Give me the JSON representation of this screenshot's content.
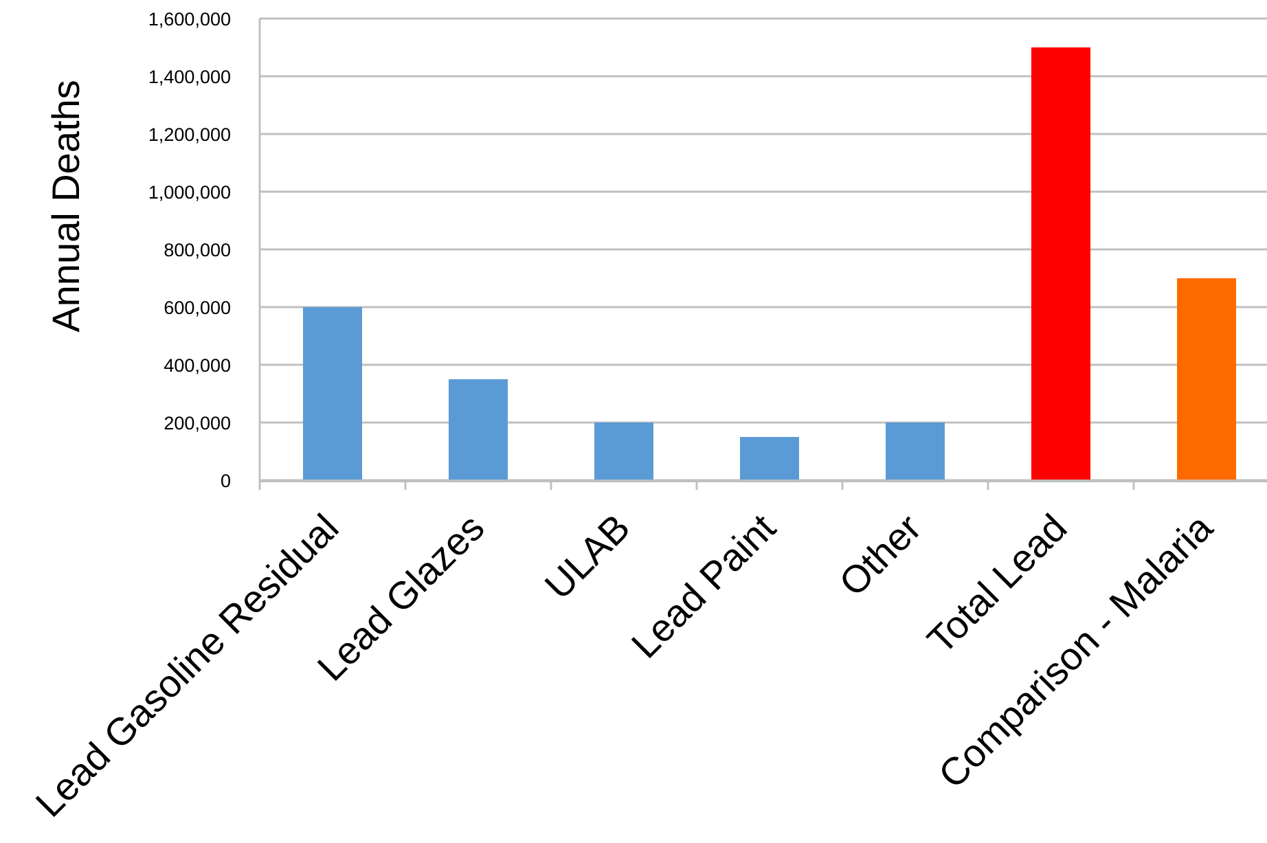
{
  "chart_data": {
    "type": "bar",
    "title": "",
    "xlabel": "",
    "ylabel": "Annual Deaths",
    "ylim": [
      0,
      1600000
    ],
    "yticks": [
      0,
      200000,
      400000,
      600000,
      800000,
      1000000,
      1200000,
      1400000,
      1600000
    ],
    "ytick_labels": [
      "0",
      "200,000",
      "400,000",
      "600,000",
      "800,000",
      "1,000,000",
      "1,200,000",
      "1,400,000",
      "1,600,000"
    ],
    "grid": true,
    "legend": "none",
    "categories": [
      "Lead Gasoline Residual",
      "Lead Glazes",
      "ULAB",
      "Lead Paint",
      "Other",
      "Total Lead",
      "Comparison - Malaria"
    ],
    "values": [
      600000,
      350000,
      200000,
      150000,
      200000,
      1500000,
      700000
    ],
    "colors": [
      "#5b9bd5",
      "#5b9bd5",
      "#5b9bd5",
      "#5b9bd5",
      "#5b9bd5",
      "#ff0000",
      "#ff6a00"
    ]
  }
}
